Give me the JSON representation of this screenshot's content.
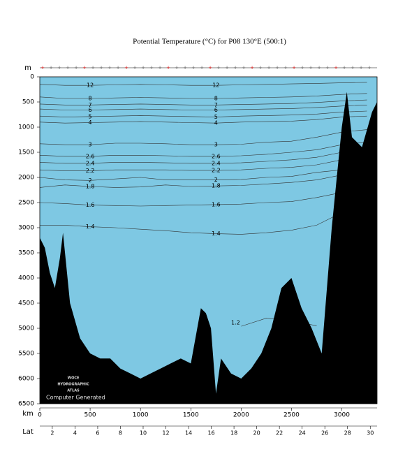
{
  "chart_data": {
    "type": "contour",
    "title": "Potential Temperature (°C) for P08 130°E (500:1)",
    "y_label": "m",
    "x_label": "km",
    "x2_label": "Lat",
    "watermark": [
      "WOCE",
      "HYDROGRAPHIC",
      "ATLAS"
    ],
    "note": "Computer Generated",
    "plot_color": "#7ec8e3",
    "xlim": [
      0,
      3350
    ],
    "xticks": [
      0,
      500,
      1000,
      1500,
      2000,
      2500,
      3000
    ],
    "ylim": [
      0,
      6500
    ],
    "yticks": [
      0,
      500,
      1000,
      1500,
      2000,
      2500,
      3000,
      3500,
      4000,
      4500,
      5000,
      5500,
      6000,
      6500
    ],
    "y_reversed": true,
    "x2lim": [
      0.9,
      30.6
    ],
    "x2ticks": [
      2,
      4,
      6,
      8,
      10,
      12,
      14,
      16,
      18,
      20,
      22,
      24,
      26,
      28,
      30
    ],
    "x": [
      0,
      250,
      500,
      750,
      1000,
      1250,
      1500,
      1750,
      2000,
      2250,
      2500,
      2750,
      3000,
      3250
    ],
    "series": [
      {
        "name": "1.2",
        "color": "#7ec8e3",
        "values": [
          null,
          null,
          null,
          null,
          null,
          null,
          null,
          null,
          4960,
          4800,
          4850,
          4950,
          null,
          null
        ]
      },
      {
        "name": "1.4",
        "color": "#7ec8e3",
        "values": [
          2950,
          2950,
          2980,
          3000,
          3030,
          3060,
          3100,
          3120,
          3130,
          3100,
          3050,
          2950,
          2700,
          null
        ]
      },
      {
        "name": "1.6",
        "color": "#7ec8e3",
        "values": [
          2500,
          2520,
          2550,
          2560,
          2570,
          2560,
          2550,
          2540,
          2530,
          2500,
          2480,
          2400,
          2300,
          null
        ]
      },
      {
        "name": "1.8",
        "color": "#7ec8e3",
        "values": [
          2200,
          2150,
          2180,
          2200,
          2190,
          2150,
          2180,
          2170,
          2160,
          2130,
          2100,
          2050,
          1950,
          null
        ]
      },
      {
        "name": "2",
        "color": "#a3d5ea",
        "values": [
          2000,
          2050,
          2060,
          2030,
          2000,
          2050,
          2050,
          2050,
          2040,
          2000,
          1980,
          1900,
          1850,
          1700
        ]
      },
      {
        "name": "2.2",
        "color": "#c6e6f2",
        "values": [
          1850,
          1870,
          1870,
          1850,
          1850,
          1850,
          1860,
          1860,
          1850,
          1820,
          1800,
          1750,
          1650,
          1600
        ]
      },
      {
        "name": "2.4",
        "color": "#c6e6f2",
        "values": [
          1700,
          1720,
          1720,
          1700,
          1700,
          1710,
          1720,
          1720,
          1710,
          1680,
          1650,
          1600,
          1500,
          1450
        ]
      },
      {
        "name": "2.6",
        "color": "#c6e6f2",
        "values": [
          1560,
          1580,
          1580,
          1560,
          1560,
          1570,
          1580,
          1580,
          1570,
          1540,
          1500,
          1450,
          1350,
          1300
        ]
      },
      {
        "name": "3",
        "color": "#c6e6f2",
        "values": [
          1330,
          1350,
          1350,
          1320,
          1320,
          1330,
          1350,
          1350,
          1340,
          1300,
          1280,
          1200,
          1100,
          1050
        ]
      },
      {
        "name": "4",
        "color": "#fbc7c3",
        "values": [
          900,
          920,
          910,
          900,
          890,
          900,
          910,
          920,
          900,
          890,
          880,
          850,
          800,
          780
        ]
      },
      {
        "name": "5",
        "color": "#fbc7c3",
        "values": [
          780,
          800,
          790,
          780,
          770,
          780,
          790,
          800,
          780,
          770,
          760,
          740,
          700,
          680
        ]
      },
      {
        "name": "6",
        "color": "#f8b2ad",
        "values": [
          640,
          660,
          660,
          650,
          640,
          650,
          660,
          660,
          650,
          640,
          630,
          610,
          580,
          560
        ]
      },
      {
        "name": "7",
        "color": "#f29590",
        "values": [
          540,
          560,
          560,
          550,
          540,
          550,
          560,
          560,
          550,
          540,
          530,
          510,
          480,
          460
        ]
      },
      {
        "name": "8",
        "color": "#ec6d6b",
        "values": [
          400,
          430,
          430,
          420,
          410,
          420,
          430,
          430,
          420,
          410,
          400,
          380,
          350,
          330
        ]
      },
      {
        "name": "12",
        "color": "#d63a3e",
        "values": [
          150,
          170,
          170,
          160,
          150,
          160,
          170,
          170,
          160,
          150,
          140,
          130,
          120,
          110
        ]
      }
    ],
    "seabed": {
      "color": "#000000",
      "x": [
        0,
        50,
        100,
        150,
        200,
        230,
        300,
        400,
        500,
        600,
        700,
        800,
        900,
        1000,
        1100,
        1200,
        1300,
        1400,
        1500,
        1600,
        1650,
        1700,
        1750,
        1800,
        1900,
        2000,
        2100,
        2200,
        2300,
        2400,
        2500,
        2600,
        2700,
        2800,
        2900,
        2950,
        3000,
        3050,
        3100,
        3200,
        3300,
        3350
      ],
      "values": [
        3200,
        3400,
        3900,
        4200,
        3600,
        3100,
        4500,
        5200,
        5500,
        5600,
        5600,
        5800,
        5900,
        6000,
        5900,
        5800,
        5700,
        5600,
        5700,
        4600,
        4700,
        5000,
        6300,
        5600,
        5900,
        6000,
        5800,
        5500,
        5000,
        4200,
        4000,
        4600,
        5000,
        5500,
        3000,
        2000,
        1000,
        300,
        1200,
        1400,
        700,
        500
      ]
    }
  }
}
